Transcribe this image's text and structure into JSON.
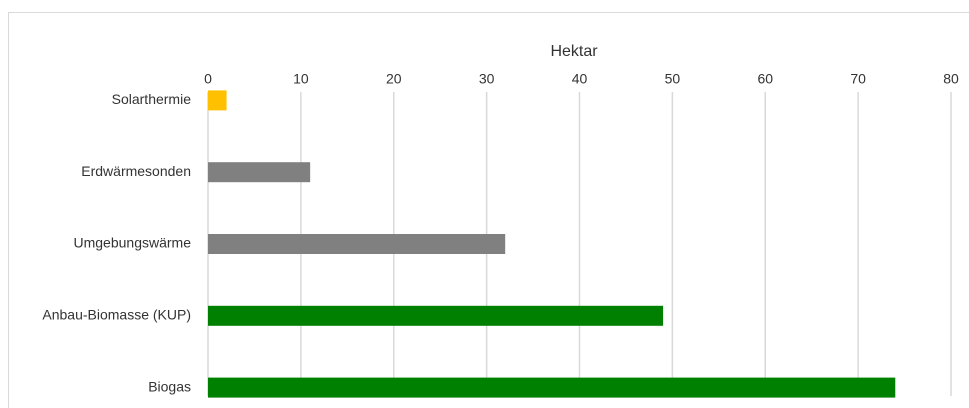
{
  "chart_data": {
    "type": "bar",
    "title": "Hektar",
    "categories": [
      "Solarthermie",
      "Erdwärmesonden",
      "Umgebungswärme",
      "Anbau-Biomasse (KUP)",
      "Biogas"
    ],
    "values": [
      2,
      11,
      32,
      49,
      74
    ],
    "colors": [
      "#ffc000",
      "#808080",
      "#808080",
      "#008000",
      "#008000"
    ],
    "xlim": [
      0,
      80
    ],
    "xticks": [
      0,
      10,
      20,
      30,
      40,
      50,
      60,
      70,
      80
    ],
    "grid": true
  }
}
